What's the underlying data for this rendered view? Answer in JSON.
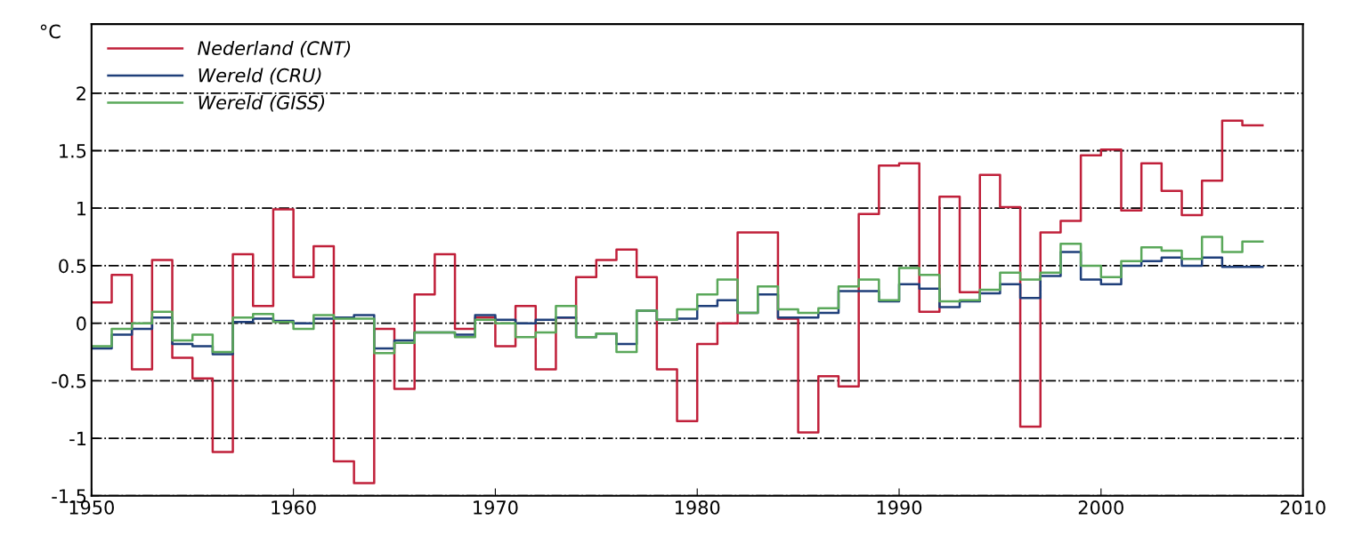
{
  "chart_data": {
    "type": "step",
    "ylabel": "°C",
    "x": [
      1950,
      1951,
      1952,
      1953,
      1954,
      1955,
      1956,
      1957,
      1958,
      1959,
      1960,
      1961,
      1962,
      1963,
      1964,
      1965,
      1966,
      1967,
      1968,
      1969,
      1970,
      1971,
      1972,
      1973,
      1974,
      1975,
      1976,
      1977,
      1978,
      1979,
      1980,
      1981,
      1982,
      1983,
      1984,
      1985,
      1986,
      1987,
      1988,
      1989,
      1990,
      1991,
      1992,
      1993,
      1994,
      1995,
      1996,
      1997,
      1998,
      1999,
      2000,
      2001,
      2002,
      2003,
      2004,
      2005,
      2006,
      2007,
      2008
    ],
    "series": [
      {
        "name": "Nederland (CNT)",
        "color": "#c0203a",
        "values": [
          0.18,
          0.42,
          -0.4,
          0.55,
          -0.3,
          -0.48,
          -1.12,
          0.6,
          0.15,
          0.99,
          0.4,
          0.67,
          -1.2,
          -1.39,
          -0.05,
          -0.57,
          0.25,
          0.6,
          -0.05,
          0.05,
          -0.2,
          0.15,
          -0.4,
          0.05,
          0.4,
          0.55,
          0.64,
          0.4,
          -0.4,
          -0.85,
          -0.18,
          0.0,
          0.79,
          0.79,
          0.04,
          -0.95,
          -0.46,
          -0.55,
          0.95,
          1.37,
          1.39,
          0.1,
          1.1,
          0.27,
          1.29,
          1.01,
          -0.9,
          0.79,
          0.89,
          1.46,
          1.51,
          0.98,
          1.39,
          1.15,
          0.94,
          1.24,
          1.76,
          1.72,
          1.72
        ]
      },
      {
        "name": "Wereld (CRU)",
        "color": "#1f3f7a",
        "values": [
          -0.22,
          -0.1,
          -0.05,
          0.05,
          -0.18,
          -0.2,
          -0.27,
          0.01,
          0.04,
          0.02,
          0.0,
          0.04,
          0.05,
          0.07,
          -0.22,
          -0.15,
          -0.08,
          -0.08,
          -0.1,
          0.07,
          0.03,
          0.0,
          0.03,
          0.05,
          -0.12,
          -0.09,
          -0.18,
          0.11,
          0.03,
          0.04,
          0.15,
          0.2,
          0.09,
          0.25,
          0.05,
          0.05,
          0.09,
          0.28,
          0.28,
          0.19,
          0.34,
          0.3,
          0.14,
          0.19,
          0.26,
          0.34,
          0.22,
          0.41,
          0.62,
          0.38,
          0.34,
          0.5,
          0.54,
          0.57,
          0.5,
          0.57,
          0.49,
          0.49,
          0.49
        ]
      },
      {
        "name": "Wereld (GISS)",
        "color": "#5aa85a",
        "values": [
          -0.2,
          -0.05,
          0.0,
          0.1,
          -0.15,
          -0.1,
          -0.25,
          0.05,
          0.08,
          0.01,
          -0.05,
          0.07,
          0.04,
          0.04,
          -0.26,
          -0.17,
          -0.08,
          -0.08,
          -0.12,
          0.03,
          0.0,
          -0.12,
          -0.08,
          0.15,
          -0.12,
          -0.09,
          -0.25,
          0.11,
          0.03,
          0.12,
          0.25,
          0.38,
          0.09,
          0.32,
          0.12,
          0.09,
          0.13,
          0.32,
          0.38,
          0.2,
          0.48,
          0.42,
          0.19,
          0.2,
          0.29,
          0.44,
          0.38,
          0.44,
          0.69,
          0.5,
          0.4,
          0.54,
          0.66,
          0.63,
          0.56,
          0.75,
          0.62,
          0.71,
          0.71
        ]
      }
    ],
    "xlim": [
      1950,
      2010
    ],
    "xticks": [
      1950,
      1960,
      1970,
      1980,
      1990,
      2000,
      2010
    ],
    "ylim": [
      -1.5,
      2.6
    ],
    "yticks": [
      -1.5,
      -1,
      -0.5,
      0,
      0.5,
      1,
      1.5,
      2
    ],
    "grid": "y",
    "legend": "top left",
    "line_style": "solid"
  }
}
